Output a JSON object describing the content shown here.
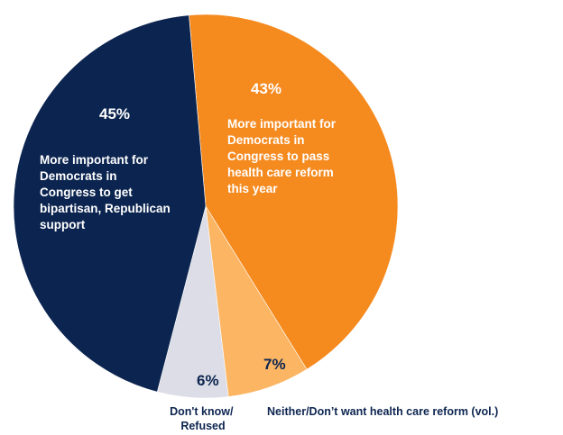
{
  "chart_data": {
    "type": "pie",
    "title": "",
    "slices": [
      {
        "id": "democrats-pass",
        "value": 43,
        "label": "43%",
        "description": [
          "More important for",
          "Democrats in",
          "Congress to pass",
          "health care reform",
          "this year"
        ],
        "color": "#f58a1f",
        "text_color": "#ffffff"
      },
      {
        "id": "neither",
        "value": 7,
        "label": "7%",
        "description": [
          "Neither/Don’t want health care reform (vol.)"
        ],
        "color": "#fbb563",
        "text_color": "#0d2550"
      },
      {
        "id": "dont-know",
        "value": 6,
        "label": "6%",
        "description": [
          "Don't know/",
          "Refused"
        ],
        "color": "#dcdde6",
        "text_color": "#0d2550"
      },
      {
        "id": "bipartisan",
        "value": 45,
        "label": "45%",
        "description": [
          "More important for",
          "Democrats in",
          "Congress to get",
          "bipartisan, Republican",
          "support"
        ],
        "color": "#0c2550",
        "text_color": "#ffffff"
      }
    ]
  }
}
